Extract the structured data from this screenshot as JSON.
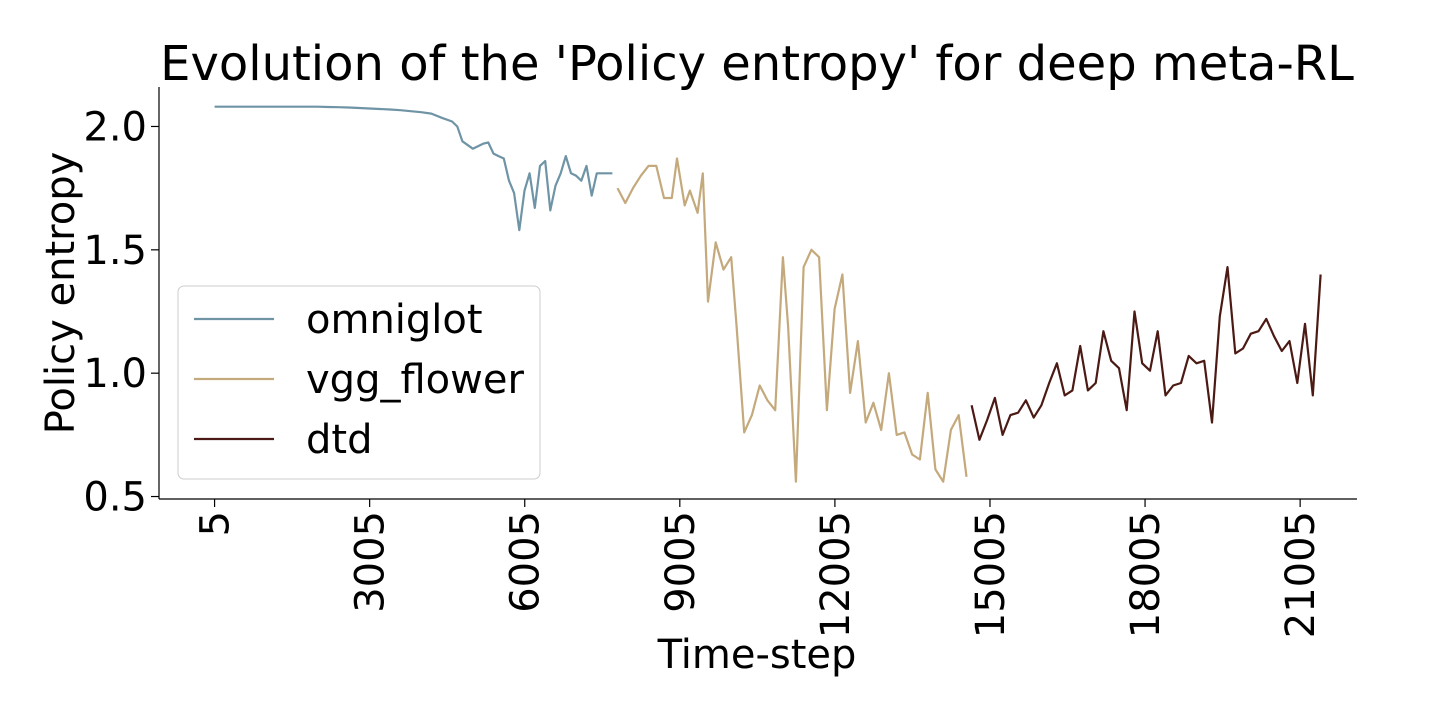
{
  "chart_data": {
    "type": "line",
    "title": "Evolution of the 'Policy entropy' for deep meta-RL",
    "xlabel": "Time-step",
    "ylabel": "Policy entropy",
    "xlim": [
      -1070,
      22105
    ],
    "ylim": [
      0.49,
      2.16
    ],
    "xticks": [
      5,
      3005,
      6005,
      9005,
      12005,
      15005,
      18005,
      21005
    ],
    "xtick_labels": [
      "5",
      "3005",
      "6005",
      "9005",
      "12005",
      "15005",
      "18005",
      "21005"
    ],
    "yticks": [
      0.5,
      1.0,
      1.5,
      2.0
    ],
    "ytick_labels": [
      "0.5",
      "1.0",
      "1.5",
      "2.0"
    ],
    "grid": false,
    "legend_position": "lower-left",
    "series": [
      {
        "name": "omniglot",
        "color": "#6e94a6",
        "x": [
          5,
          200,
          400,
          600,
          800,
          1000,
          1200,
          1400,
          1600,
          1800,
          2000,
          2200,
          2400,
          2600,
          2800,
          3000,
          3200,
          3400,
          3600,
          3800,
          4000,
          4200,
          4400,
          4600,
          4700,
          4800,
          5000,
          5200,
          5300,
          5400,
          5500,
          5600,
          5700,
          5800,
          5900,
          6000,
          6100,
          6200,
          6300,
          6400,
          6500,
          6600,
          6700,
          6800,
          6900,
          7000,
          7100,
          7200,
          7300,
          7400,
          7500,
          7600,
          7700
        ],
        "y": [
          2.08,
          2.08,
          2.08,
          2.08,
          2.08,
          2.08,
          2.08,
          2.08,
          2.08,
          2.08,
          2.08,
          2.079,
          2.078,
          2.077,
          2.075,
          2.073,
          2.071,
          2.069,
          2.066,
          2.062,
          2.058,
          2.052,
          2.035,
          2.02,
          2.0,
          1.94,
          1.91,
          1.93,
          1.935,
          1.89,
          1.88,
          1.87,
          1.78,
          1.73,
          1.58,
          1.74,
          1.81,
          1.67,
          1.84,
          1.86,
          1.66,
          1.76,
          1.81,
          1.88,
          1.81,
          1.8,
          1.78,
          1.84,
          1.72,
          1.81,
          1.81,
          1.81,
          1.81
        ]
      },
      {
        "name": "vgg_flower",
        "color": "#c4a97c",
        "x": [
          7800,
          7950,
          8100,
          8250,
          8400,
          8550,
          8700,
          8850,
          8950,
          9100,
          9200,
          9350,
          9450,
          9550,
          9700,
          9850,
          10000,
          10100,
          10250,
          10400,
          10550,
          10700,
          10850,
          11000,
          11100,
          11250,
          11400,
          11550,
          11700,
          11850,
          12000,
          12150,
          12300,
          12450,
          12600,
          12750,
          12900,
          13050,
          13200,
          13350,
          13500,
          13650,
          13800,
          13950,
          14100,
          14250,
          14400,
          14550
        ],
        "y": [
          1.75,
          1.69,
          1.75,
          1.8,
          1.84,
          1.84,
          1.71,
          1.71,
          1.87,
          1.68,
          1.74,
          1.65,
          1.81,
          1.29,
          1.53,
          1.42,
          1.47,
          1.2,
          0.76,
          0.83,
          0.95,
          0.89,
          0.85,
          1.47,
          1.19,
          0.56,
          1.43,
          1.5,
          1.47,
          0.85,
          1.26,
          1.4,
          0.92,
          1.13,
          0.8,
          0.88,
          0.77,
          1.0,
          0.75,
          0.76,
          0.67,
          0.65,
          0.92,
          0.61,
          0.56,
          0.77,
          0.83,
          0.58
        ]
      },
      {
        "name": "dtd",
        "color": "#4c1a14",
        "x": [
          14650,
          14800,
          14950,
          15100,
          15250,
          15400,
          15550,
          15700,
          15850,
          16000,
          16150,
          16300,
          16450,
          16600,
          16750,
          16900,
          17050,
          17200,
          17350,
          17500,
          17650,
          17800,
          17950,
          18100,
          18250,
          18400,
          18550,
          18700,
          18850,
          19000,
          19150,
          19300,
          19450,
          19600,
          19750,
          19900,
          20050,
          20200,
          20350,
          20500,
          20650,
          20800,
          20950,
          21100,
          21250,
          21400
        ],
        "y": [
          0.87,
          0.73,
          0.81,
          0.9,
          0.75,
          0.83,
          0.84,
          0.89,
          0.82,
          0.87,
          0.96,
          1.04,
          0.91,
          0.93,
          1.11,
          0.93,
          0.96,
          1.17,
          1.05,
          1.02,
          0.85,
          1.25,
          1.04,
          1.01,
          1.17,
          0.91,
          0.95,
          0.96,
          1.07,
          1.04,
          1.05,
          0.8,
          1.23,
          1.43,
          1.08,
          1.1,
          1.16,
          1.17,
          1.22,
          1.15,
          1.09,
          1.13,
          0.96,
          1.2,
          0.91,
          1.4
        ]
      }
    ]
  }
}
